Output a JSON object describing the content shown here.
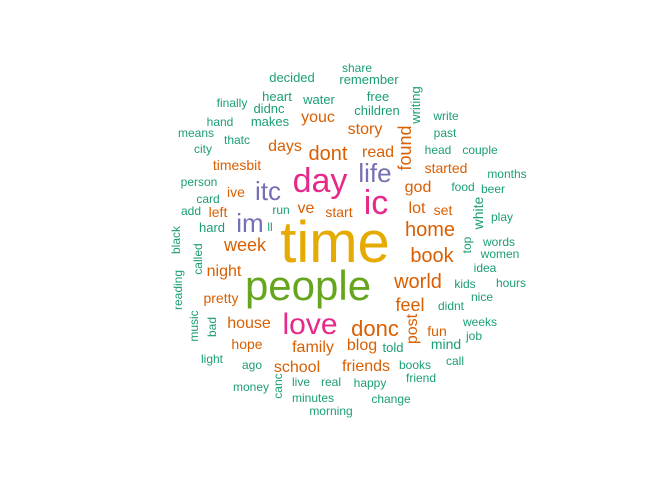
{
  "colors": {
    "teal": "#1b9e77",
    "orange": "#d95f02",
    "purple": "#7570b3",
    "magenta": "#e7298a",
    "green": "#66a61e",
    "gold": "#e6ab02"
  },
  "words": [
    {
      "text": "time",
      "color": "gold"
    },
    {
      "text": "people",
      "color": "green"
    },
    {
      "text": "day",
      "color": "magenta"
    },
    {
      "text": "ic",
      "color": "magenta"
    },
    {
      "text": "love",
      "color": "magenta"
    },
    {
      "text": "life",
      "color": "purple"
    },
    {
      "text": "itc",
      "color": "purple"
    },
    {
      "text": "im",
      "color": "purple"
    },
    {
      "text": "donc",
      "color": "orange"
    },
    {
      "text": "world",
      "color": "orange"
    },
    {
      "text": "home",
      "color": "orange"
    },
    {
      "text": "book",
      "color": "orange"
    },
    {
      "text": "dont",
      "color": "orange"
    },
    {
      "text": "week",
      "color": "orange"
    },
    {
      "text": "feel",
      "color": "orange"
    },
    {
      "text": "found",
      "color": "orange"
    },
    {
      "text": "days",
      "color": "orange"
    },
    {
      "text": "read",
      "color": "orange"
    },
    {
      "text": "god",
      "color": "orange"
    },
    {
      "text": "house",
      "color": "orange"
    },
    {
      "text": "family",
      "color": "orange"
    },
    {
      "text": "school",
      "color": "orange"
    },
    {
      "text": "friends",
      "color": "orange"
    },
    {
      "text": "blog",
      "color": "orange"
    },
    {
      "text": "night",
      "color": "orange"
    },
    {
      "text": "post",
      "color": "orange"
    },
    {
      "text": "ve",
      "color": "orange"
    },
    {
      "text": "story",
      "color": "orange"
    },
    {
      "text": "youc",
      "color": "orange"
    },
    {
      "text": "lot",
      "color": "orange"
    },
    {
      "text": "pretty",
      "color": "orange"
    },
    {
      "text": "hope",
      "color": "orange"
    },
    {
      "text": "timesbit",
      "color": "orange"
    },
    {
      "text": "started",
      "color": "orange"
    },
    {
      "text": "ive",
      "color": "orange"
    },
    {
      "text": "left",
      "color": "orange"
    },
    {
      "text": "start",
      "color": "orange"
    },
    {
      "text": "set",
      "color": "orange"
    },
    {
      "text": "fun",
      "color": "orange"
    },
    {
      "text": "mind",
      "color": "teal"
    },
    {
      "text": "told",
      "color": "teal"
    },
    {
      "text": "share",
      "color": "teal"
    },
    {
      "text": "decided",
      "color": "teal"
    },
    {
      "text": "remember",
      "color": "teal"
    },
    {
      "text": "heart",
      "color": "teal"
    },
    {
      "text": "free",
      "color": "teal"
    },
    {
      "text": "writing",
      "color": "teal"
    },
    {
      "text": "water",
      "color": "teal"
    },
    {
      "text": "finally",
      "color": "teal"
    },
    {
      "text": "didnc",
      "color": "teal"
    },
    {
      "text": "children",
      "color": "teal"
    },
    {
      "text": "write",
      "color": "teal"
    },
    {
      "text": "hand",
      "color": "teal"
    },
    {
      "text": "makes",
      "color": "teal"
    },
    {
      "text": "means",
      "color": "teal"
    },
    {
      "text": "thatc",
      "color": "teal"
    },
    {
      "text": "past",
      "color": "teal"
    },
    {
      "text": "city",
      "color": "teal"
    },
    {
      "text": "head",
      "color": "teal"
    },
    {
      "text": "couple",
      "color": "teal"
    },
    {
      "text": "months",
      "color": "teal"
    },
    {
      "text": "person",
      "color": "teal"
    },
    {
      "text": "food",
      "color": "teal"
    },
    {
      "text": "beer",
      "color": "teal"
    },
    {
      "text": "card",
      "color": "teal"
    },
    {
      "text": "add",
      "color": "teal"
    },
    {
      "text": "run",
      "color": "teal"
    },
    {
      "text": "ll",
      "color": "teal"
    },
    {
      "text": "white",
      "color": "teal"
    },
    {
      "text": "play",
      "color": "teal"
    },
    {
      "text": "hard",
      "color": "teal"
    },
    {
      "text": "black",
      "color": "teal"
    },
    {
      "text": "called",
      "color": "teal"
    },
    {
      "text": "top",
      "color": "teal"
    },
    {
      "text": "words",
      "color": "teal"
    },
    {
      "text": "women",
      "color": "teal"
    },
    {
      "text": "idea",
      "color": "teal"
    },
    {
      "text": "kids",
      "color": "teal"
    },
    {
      "text": "hours",
      "color": "teal"
    },
    {
      "text": "reading",
      "color": "teal"
    },
    {
      "text": "nice",
      "color": "teal"
    },
    {
      "text": "didnt",
      "color": "teal"
    },
    {
      "text": "bad",
      "color": "teal"
    },
    {
      "text": "music",
      "color": "teal"
    },
    {
      "text": "weeks",
      "color": "teal"
    },
    {
      "text": "job",
      "color": "teal"
    },
    {
      "text": "light",
      "color": "teal"
    },
    {
      "text": "ago",
      "color": "teal"
    },
    {
      "text": "call",
      "color": "teal"
    },
    {
      "text": "books",
      "color": "teal"
    },
    {
      "text": "live",
      "color": "teal"
    },
    {
      "text": "real",
      "color": "teal"
    },
    {
      "text": "happy",
      "color": "teal"
    },
    {
      "text": "friend",
      "color": "teal"
    },
    {
      "text": "money",
      "color": "teal"
    },
    {
      "text": "canc",
      "color": "teal"
    },
    {
      "text": "minutes",
      "color": "teal"
    },
    {
      "text": "change",
      "color": "teal"
    },
    {
      "text": "morning",
      "color": "teal"
    }
  ]
}
